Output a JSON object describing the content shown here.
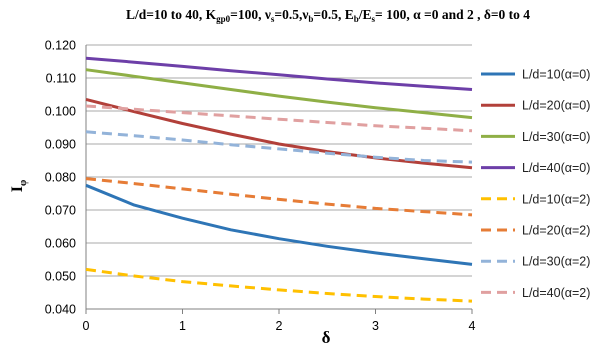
{
  "chart_data": {
    "type": "line",
    "title_parts": [
      {
        "t": "L/d=10 to 40, K"
      },
      {
        "t": "gp0",
        "sub": true
      },
      {
        "t": "=100, ν"
      },
      {
        "t": "s",
        "sub": true
      },
      {
        "t": "=0.5,ν"
      },
      {
        "t": "b",
        "sub": true
      },
      {
        "t": "=0.5, E"
      },
      {
        "t": "b",
        "sub": true
      },
      {
        "t": "/E"
      },
      {
        "t": "s",
        "sub": true
      },
      {
        "t": "= 100, α =0 and 2 , δ=0 to 4"
      }
    ],
    "xlabel": "δ",
    "ylabel_main": "I",
    "ylabel_sub": "φ",
    "xlim": [
      0,
      4
    ],
    "ylim": [
      0.04,
      0.12
    ],
    "x_ticks": [
      "0",
      "1",
      "2",
      "3",
      "4"
    ],
    "y_ticks": [
      "0.040",
      "0.050",
      "0.060",
      "0.070",
      "0.080",
      "0.090",
      "0.100",
      "0.110",
      "0.120"
    ],
    "grid": "horizontal",
    "legend_position": "right",
    "x": [
      0,
      0.5,
      1,
      1.5,
      2,
      2.5,
      3,
      3.5,
      4
    ],
    "series": [
      {
        "name": "L/d=10(α=0)",
        "color": "#2e75b6",
        "dashed": false,
        "values": [
          0.0775,
          0.0715,
          0.0675,
          0.064,
          0.0613,
          0.059,
          0.057,
          0.0552,
          0.0535
        ]
      },
      {
        "name": "L/d=20(α=0)",
        "color": "#b2403a",
        "dashed": false,
        "values": [
          0.1035,
          0.0998,
          0.0962,
          0.093,
          0.09,
          0.0877,
          0.0858,
          0.0842,
          0.0828
        ]
      },
      {
        "name": "L/d=30(α=0)",
        "color": "#8faf46",
        "dashed": false,
        "values": [
          0.1125,
          0.1105,
          0.1085,
          0.1065,
          0.1045,
          0.1027,
          0.101,
          0.0995,
          0.098
        ]
      },
      {
        "name": "L/d=40(α=0)",
        "color": "#6d3fa8",
        "dashed": false,
        "values": [
          0.116,
          0.1148,
          0.1135,
          0.1122,
          0.111,
          0.1097,
          0.1085,
          0.1075,
          0.1065
        ]
      },
      {
        "name": "L/d=10(α=2)",
        "color": "#ffc000",
        "dashed": true,
        "values": [
          0.052,
          0.05,
          0.0483,
          0.047,
          0.0458,
          0.0447,
          0.0438,
          0.043,
          0.0424
        ]
      },
      {
        "name": "L/d=20(α=2)",
        "color": "#e67c36",
        "dashed": true,
        "values": [
          0.0795,
          0.078,
          0.0764,
          0.0748,
          0.0732,
          0.0718,
          0.0705,
          0.0695,
          0.0685
        ]
      },
      {
        "name": "L/d=30(α=2)",
        "color": "#93b3d9",
        "dashed": true,
        "values": [
          0.0937,
          0.0925,
          0.0912,
          0.0898,
          0.0885,
          0.0872,
          0.086,
          0.085,
          0.0845
        ]
      },
      {
        "name": "L/d=40(α=2)",
        "color": "#e0a0a0",
        "dashed": true,
        "values": [
          0.1015,
          0.1005,
          0.0995,
          0.0985,
          0.0975,
          0.0965,
          0.0955,
          0.0948,
          0.094
        ]
      }
    ]
  }
}
